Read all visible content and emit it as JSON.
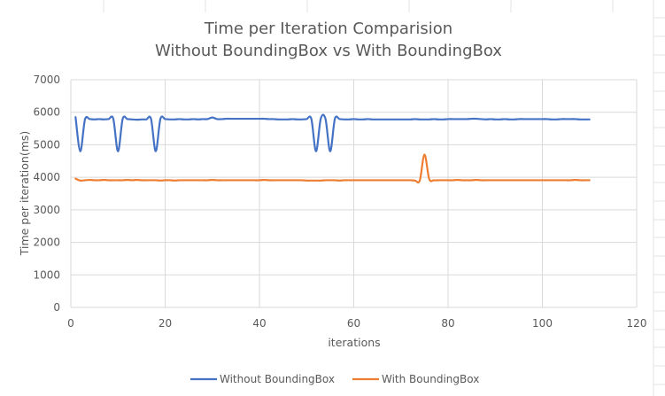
{
  "chart_data": {
    "type": "line",
    "title_line1": "Time per Iteration Comparision",
    "title_line2": "Without BoundingBox vs With BoundingBox",
    "xlabel": "iterations",
    "ylabel": "Time per iteration(ms)",
    "xlim": [
      0,
      120
    ],
    "ylim": [
      0,
      7000
    ],
    "x_ticks": [
      0,
      20,
      40,
      60,
      80,
      100,
      120
    ],
    "y_ticks": [
      0,
      1000,
      2000,
      3000,
      4000,
      5000,
      6000,
      7000
    ],
    "grid": true,
    "legend_position": "bottom",
    "series": [
      {
        "name": "Without BoundingBox",
        "color": "#4472C4",
        "points": [
          [
            1,
            5850
          ],
          [
            2,
            4800
          ],
          [
            3,
            5780
          ],
          [
            4,
            5790
          ],
          [
            5,
            5780
          ],
          [
            6,
            5790
          ],
          [
            7,
            5780
          ],
          [
            8,
            5790
          ],
          [
            9,
            5800
          ],
          [
            10,
            4800
          ],
          [
            11,
            5800
          ],
          [
            12,
            5790
          ],
          [
            13,
            5780
          ],
          [
            14,
            5770
          ],
          [
            15,
            5780
          ],
          [
            16,
            5780
          ],
          [
            17,
            5800
          ],
          [
            18,
            4800
          ],
          [
            19,
            5800
          ],
          [
            20,
            5790
          ],
          [
            21,
            5780
          ],
          [
            22,
            5780
          ],
          [
            23,
            5790
          ],
          [
            24,
            5780
          ],
          [
            25,
            5780
          ],
          [
            26,
            5790
          ],
          [
            27,
            5780
          ],
          [
            28,
            5790
          ],
          [
            29,
            5790
          ],
          [
            30,
            5840
          ],
          [
            31,
            5790
          ],
          [
            32,
            5790
          ],
          [
            33,
            5800
          ],
          [
            34,
            5800
          ],
          [
            35,
            5800
          ],
          [
            36,
            5800
          ],
          [
            37,
            5800
          ],
          [
            38,
            5800
          ],
          [
            39,
            5800
          ],
          [
            40,
            5800
          ],
          [
            41,
            5800
          ],
          [
            42,
            5790
          ],
          [
            43,
            5790
          ],
          [
            44,
            5780
          ],
          [
            45,
            5780
          ],
          [
            46,
            5780
          ],
          [
            47,
            5790
          ],
          [
            48,
            5780
          ],
          [
            49,
            5780
          ],
          [
            50,
            5790
          ],
          [
            51,
            5800
          ],
          [
            52,
            4800
          ],
          [
            53,
            5800
          ],
          [
            54,
            5800
          ],
          [
            55,
            4800
          ],
          [
            56,
            5800
          ],
          [
            57,
            5790
          ],
          [
            58,
            5780
          ],
          [
            59,
            5780
          ],
          [
            60,
            5790
          ],
          [
            61,
            5780
          ],
          [
            62,
            5780
          ],
          [
            63,
            5790
          ],
          [
            64,
            5780
          ],
          [
            65,
            5780
          ],
          [
            66,
            5780
          ],
          [
            67,
            5780
          ],
          [
            68,
            5780
          ],
          [
            69,
            5780
          ],
          [
            70,
            5780
          ],
          [
            71,
            5780
          ],
          [
            72,
            5780
          ],
          [
            73,
            5790
          ],
          [
            74,
            5780
          ],
          [
            75,
            5780
          ],
          [
            76,
            5780
          ],
          [
            77,
            5790
          ],
          [
            78,
            5780
          ],
          [
            79,
            5780
          ],
          [
            80,
            5790
          ],
          [
            81,
            5790
          ],
          [
            82,
            5790
          ],
          [
            83,
            5790
          ],
          [
            84,
            5790
          ],
          [
            85,
            5800
          ],
          [
            86,
            5800
          ],
          [
            87,
            5790
          ],
          [
            88,
            5780
          ],
          [
            89,
            5790
          ],
          [
            90,
            5780
          ],
          [
            91,
            5780
          ],
          [
            92,
            5790
          ],
          [
            93,
            5780
          ],
          [
            94,
            5780
          ],
          [
            95,
            5790
          ],
          [
            96,
            5790
          ],
          [
            97,
            5790
          ],
          [
            98,
            5790
          ],
          [
            99,
            5790
          ],
          [
            100,
            5790
          ],
          [
            101,
            5790
          ],
          [
            102,
            5780
          ],
          [
            103,
            5780
          ],
          [
            104,
            5790
          ],
          [
            105,
            5790
          ],
          [
            106,
            5790
          ],
          [
            107,
            5790
          ],
          [
            108,
            5780
          ],
          [
            109,
            5780
          ],
          [
            110,
            5780
          ]
        ]
      },
      {
        "name": "With BoundingBox",
        "color": "#ED7D31",
        "points": [
          [
            1,
            3960
          ],
          [
            2,
            3900
          ],
          [
            3,
            3910
          ],
          [
            4,
            3920
          ],
          [
            5,
            3910
          ],
          [
            6,
            3910
          ],
          [
            7,
            3920
          ],
          [
            8,
            3910
          ],
          [
            9,
            3910
          ],
          [
            10,
            3910
          ],
          [
            11,
            3910
          ],
          [
            12,
            3920
          ],
          [
            13,
            3910
          ],
          [
            14,
            3920
          ],
          [
            15,
            3910
          ],
          [
            16,
            3910
          ],
          [
            17,
            3910
          ],
          [
            18,
            3910
          ],
          [
            19,
            3900
          ],
          [
            20,
            3910
          ],
          [
            21,
            3910
          ],
          [
            22,
            3900
          ],
          [
            23,
            3910
          ],
          [
            24,
            3910
          ],
          [
            25,
            3910
          ],
          [
            26,
            3910
          ],
          [
            27,
            3910
          ],
          [
            28,
            3910
          ],
          [
            29,
            3910
          ],
          [
            30,
            3920
          ],
          [
            31,
            3910
          ],
          [
            32,
            3910
          ],
          [
            33,
            3910
          ],
          [
            34,
            3910
          ],
          [
            35,
            3910
          ],
          [
            36,
            3910
          ],
          [
            37,
            3910
          ],
          [
            38,
            3910
          ],
          [
            39,
            3910
          ],
          [
            40,
            3910
          ],
          [
            41,
            3920
          ],
          [
            42,
            3910
          ],
          [
            43,
            3910
          ],
          [
            44,
            3910
          ],
          [
            45,
            3910
          ],
          [
            46,
            3910
          ],
          [
            47,
            3910
          ],
          [
            48,
            3910
          ],
          [
            49,
            3910
          ],
          [
            50,
            3900
          ],
          [
            51,
            3900
          ],
          [
            52,
            3900
          ],
          [
            53,
            3900
          ],
          [
            54,
            3910
          ],
          [
            55,
            3910
          ],
          [
            56,
            3910
          ],
          [
            57,
            3900
          ],
          [
            58,
            3910
          ],
          [
            59,
            3910
          ],
          [
            60,
            3910
          ],
          [
            61,
            3910
          ],
          [
            62,
            3910
          ],
          [
            63,
            3910
          ],
          [
            64,
            3910
          ],
          [
            65,
            3910
          ],
          [
            66,
            3910
          ],
          [
            67,
            3910
          ],
          [
            68,
            3910
          ],
          [
            69,
            3910
          ],
          [
            70,
            3910
          ],
          [
            71,
            3910
          ],
          [
            72,
            3910
          ],
          [
            73,
            3900
          ],
          [
            74,
            3900
          ],
          [
            75,
            4700
          ],
          [
            76,
            3950
          ],
          [
            77,
            3910
          ],
          [
            78,
            3910
          ],
          [
            79,
            3910
          ],
          [
            80,
            3910
          ],
          [
            81,
            3910
          ],
          [
            82,
            3920
          ],
          [
            83,
            3910
          ],
          [
            84,
            3910
          ],
          [
            85,
            3910
          ],
          [
            86,
            3920
          ],
          [
            87,
            3910
          ],
          [
            88,
            3910
          ],
          [
            89,
            3910
          ],
          [
            90,
            3910
          ],
          [
            91,
            3910
          ],
          [
            92,
            3910
          ],
          [
            93,
            3910
          ],
          [
            94,
            3910
          ],
          [
            95,
            3910
          ],
          [
            96,
            3910
          ],
          [
            97,
            3910
          ],
          [
            98,
            3910
          ],
          [
            99,
            3910
          ],
          [
            100,
            3910
          ],
          [
            101,
            3910
          ],
          [
            102,
            3910
          ],
          [
            103,
            3910
          ],
          [
            104,
            3910
          ],
          [
            105,
            3910
          ],
          [
            106,
            3910
          ],
          [
            107,
            3920
          ],
          [
            108,
            3910
          ],
          [
            109,
            3910
          ],
          [
            110,
            3910
          ]
        ]
      }
    ]
  }
}
